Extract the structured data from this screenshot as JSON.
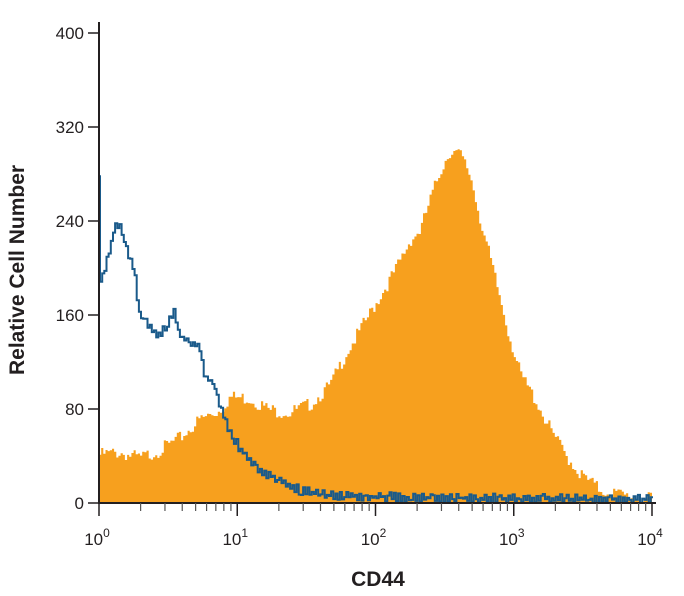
{
  "chart_data": {
    "type": "area",
    "title": "",
    "xlabel": "CD44",
    "ylabel": "Relative Cell Number",
    "x_scale": "log",
    "xlim": [
      1,
      10000
    ],
    "ylim": [
      0,
      400
    ],
    "x_ticks": [
      {
        "base": "10",
        "exp": "0"
      },
      {
        "base": "10",
        "exp": "1"
      },
      {
        "base": "10",
        "exp": "2"
      },
      {
        "base": "10",
        "exp": "3"
      },
      {
        "base": "10",
        "exp": "4"
      }
    ],
    "y_ticks": [
      "0",
      "80",
      "160",
      "240",
      "320",
      "400"
    ],
    "grid": false,
    "legend": "none",
    "series": [
      {
        "style": "filled",
        "color": "#f7a01e",
        "x": [
          1,
          1.42,
          1.98,
          2.77,
          3.86,
          5.39,
          7.53,
          8.9,
          12.4,
          17.3,
          24.2,
          33.8,
          47.2,
          60.7,
          77.8,
          100,
          140,
          180,
          212,
          250,
          296,
          349,
          413,
          488,
          577,
          681,
          805,
          951,
          1124,
          1443,
          1855,
          2382,
          3060,
          4269,
          5960,
          9840
        ],
        "y": [
          41,
          43,
          38,
          45,
          55,
          71,
          79,
          90,
          89,
          79,
          77,
          84,
          100,
          126,
          147,
          169,
          198,
          224,
          232,
          258,
          283,
          300,
          296,
          279,
          241,
          207,
          173,
          139,
          109,
          88,
          62,
          41,
          24,
          11,
          7,
          3
        ]
      },
      {
        "style": "outline",
        "color": "#1a5a8a",
        "x": [
          1,
          1.001,
          1.1,
          1.2,
          1.35,
          1.47,
          1.62,
          1.82,
          1.98,
          2.34,
          2.77,
          3.27,
          3.55,
          3.86,
          4.56,
          5.39,
          5.86,
          6.93,
          7.53,
          8.9,
          10.5,
          12.4,
          14.7,
          20.5,
          28.6,
          39.9,
          152,
          805,
          9840
        ],
        "y": [
          279,
          181,
          198,
          215,
          239,
          232,
          215,
          198,
          160,
          151,
          141,
          155,
          163,
          143,
          136,
          134,
          109,
          100,
          83,
          62,
          47,
          37,
          28,
          20,
          11,
          7,
          5,
          4,
          3
        ]
      }
    ]
  }
}
